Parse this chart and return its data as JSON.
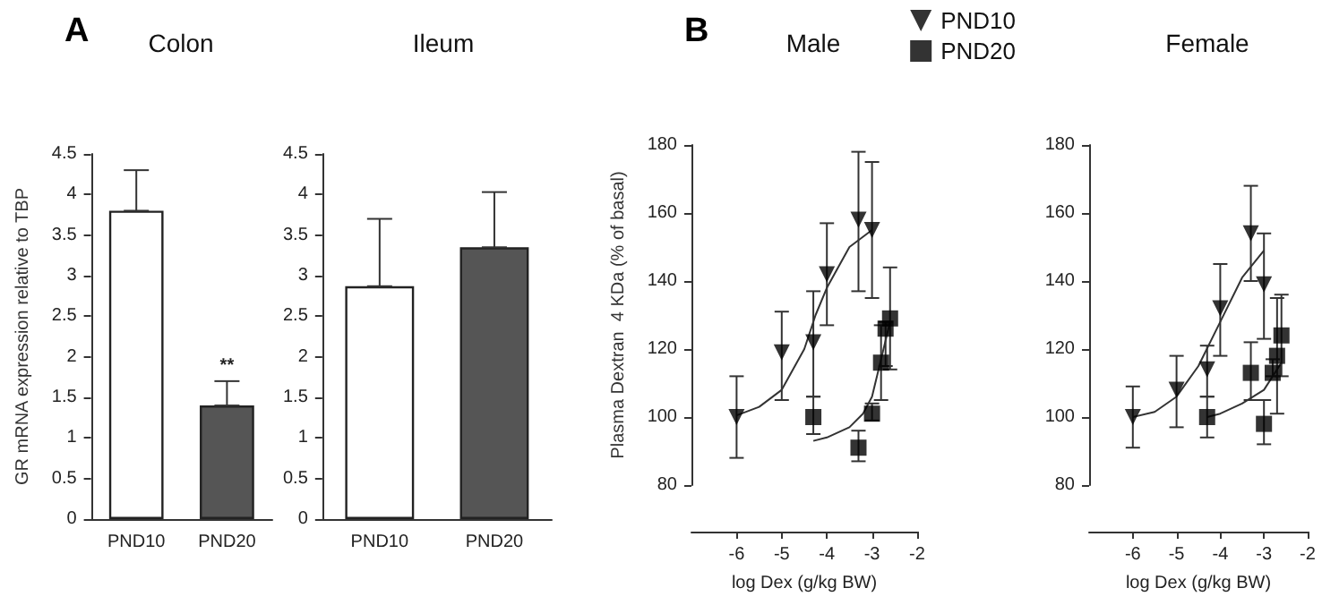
{
  "chart_data": [
    {
      "type": "bar",
      "title": "Colon",
      "ylabel": "GR mRNA expression relative to TBP",
      "categories": [
        "PND10",
        "PND20"
      ],
      "values": [
        3.8,
        1.4
      ],
      "colors": [
        "#ffffff",
        "#555555"
      ],
      "errors": [
        [
          3.8,
          4.3
        ],
        [
          1.4,
          1.7
        ]
      ],
      "ylim": [
        0,
        4.5
      ],
      "yticks": [
        0,
        0.5,
        1,
        1.5,
        2,
        2.5,
        3,
        3.5,
        4,
        4.5
      ],
      "grid": false,
      "legend": false,
      "annotations": [
        "A",
        {
          "text": "**",
          "x": "PND20",
          "y": 1.4
        }
      ]
    },
    {
      "type": "bar",
      "title": "Ileum",
      "categories": [
        "PND10",
        "PND20"
      ],
      "values": [
        2.87,
        3.35
      ],
      "colors": [
        "#ffffff",
        "#555555"
      ],
      "errors": [
        [
          2.87,
          3.7
        ],
        [
          3.35,
          4.03
        ]
      ],
      "ylim": [
        0,
        4.5
      ],
      "yticks": [
        0,
        0.5,
        1,
        1.5,
        2,
        2.5,
        3,
        3.5,
        4,
        4.5
      ],
      "grid": false,
      "legend": false
    },
    {
      "type": "scatter",
      "title": "Male",
      "xlabel": "log Dex (g/kg BW)",
      "ylabel": "Plasma Dextran  4 KDa (% of basal)",
      "xlim": [
        -7,
        -2
      ],
      "xticks": [
        -6,
        -5,
        -4,
        -3,
        -2
      ],
      "ylim": [
        80,
        180
      ],
      "yticks": [
        80,
        100,
        120,
        140,
        160,
        180
      ],
      "grid": false,
      "legend": "top right",
      "annotations": [
        "B"
      ],
      "series": [
        {
          "name": "PND10",
          "color": "#000000",
          "marker": "triangle",
          "x": [
            -6,
            -5,
            -4.3,
            -4,
            -3.3,
            -3
          ],
          "values": [
            100,
            119,
            122,
            142,
            158,
            155
          ],
          "errors": [
            [
              88,
              112
            ],
            [
              105,
              131
            ],
            [
              106,
              137
            ],
            [
              127,
              157
            ],
            [
              137,
              178
            ],
            [
              135,
              175
            ]
          ]
        },
        {
          "name": "PND20",
          "color": "#000000",
          "marker": "square",
          "x": [
            -4.3,
            -3.3,
            -3,
            -2.8,
            -2.7,
            -2.6
          ],
          "values": [
            100,
            91,
            101,
            116,
            126,
            129
          ],
          "errors": [
            [
              95,
              106
            ],
            [
              87,
              96
            ],
            [
              99,
              104
            ],
            [
              105,
              127
            ],
            [
              115,
              128
            ],
            [
              114,
              144
            ]
          ]
        },
        {
          "type": "line",
          "color": "#333333",
          "marker": "none",
          "x": [
            -6,
            -5.5,
            -5,
            -4.5,
            -4.25,
            -4,
            -3.5,
            -3
          ],
          "values": [
            100.5,
            103,
            108,
            120,
            130,
            138,
            150,
            155
          ]
        },
        {
          "type": "line",
          "color": "#333333",
          "marker": "none",
          "x": [
            -4.3,
            -4,
            -3.5,
            -3.2,
            -3,
            -2.8,
            -2.6
          ],
          "values": [
            93,
            94,
            97,
            101,
            106,
            117,
            128
          ]
        }
      ]
    },
    {
      "type": "scatter",
      "title": "Female",
      "xlabel": "log Dex (g/kg BW)",
      "xlim": [
        -7,
        -2
      ],
      "xticks": [
        -6,
        -5,
        -4,
        -3,
        -2
      ],
      "ylim": [
        80,
        180
      ],
      "yticks": [
        80,
        100,
        120,
        140,
        160,
        180
      ],
      "grid": false,
      "legend": false,
      "series": [
        {
          "color": "#000000",
          "marker": "triangle",
          "x": [
            -6,
            -5,
            -4.3,
            -4,
            -3.3,
            -3
          ],
          "values": [
            100,
            108,
            114,
            132,
            154,
            139
          ],
          "errors": [
            [
              91,
              109
            ],
            [
              97,
              118
            ],
            [
              106,
              121
            ],
            [
              118,
              145
            ],
            [
              140,
              168
            ],
            [
              123,
              154
            ]
          ]
        },
        {
          "color": "#000000",
          "marker": "square",
          "x": [
            -4.3,
            -3.3,
            -3,
            -2.8,
            -2.7,
            -2.6
          ],
          "values": [
            100,
            113,
            98,
            113,
            118,
            124
          ],
          "errors": [
            [
              94,
              106
            ],
            [
              105,
              122
            ],
            [
              92,
              105
            ],
            [
              112,
              117
            ],
            [
              101,
              135
            ],
            [
              112,
              136
            ]
          ]
        },
        {
          "type": "line",
          "color": "#333333",
          "marker": "none",
          "x": [
            -6,
            -5.5,
            -5,
            -4.5,
            -4,
            -3.5,
            -3
          ],
          "values": [
            100,
            101.5,
            106,
            115,
            128,
            141,
            149
          ]
        },
        {
          "type": "line",
          "color": "#333333",
          "marker": "none",
          "x": [
            -4.3,
            -4,
            -3.5,
            -3,
            -2.8,
            -2.6
          ],
          "values": [
            100,
            101,
            104,
            108,
            112,
            116
          ]
        }
      ]
    }
  ]
}
